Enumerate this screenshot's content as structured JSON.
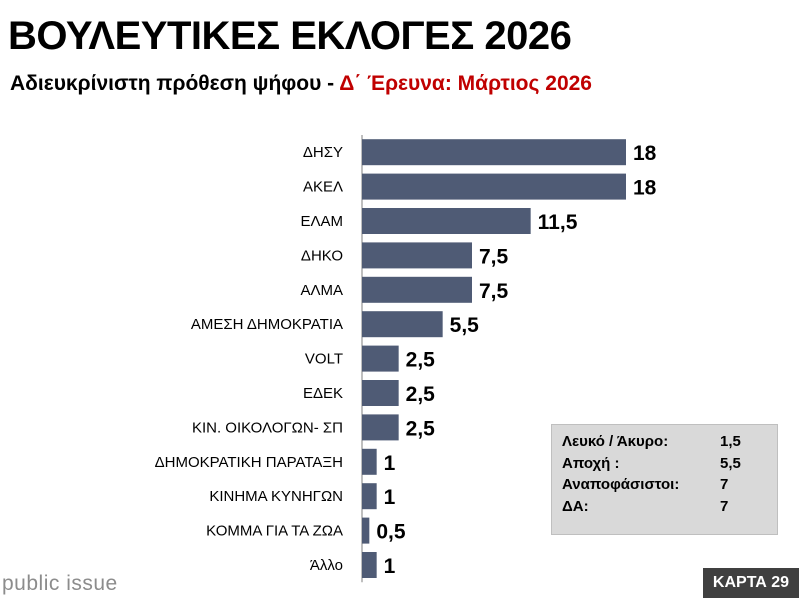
{
  "header": {
    "title": "ΒΟΥΛΕΥΤΙΚΕΣ ΕΚΛΟΓΕΣ 2026",
    "subtitle_plain": "Αδιευκρίνιστη πρόθεση ψήφου - ",
    "subtitle_accent": "Δ΄ Έρευνα:  Μάρτιος 2026"
  },
  "colors": {
    "bar": "#4f5b75",
    "accent": "#c00000",
    "axis": "#7f7f7f"
  },
  "chart_data": {
    "type": "bar",
    "orientation": "horizontal",
    "categories": [
      "ΔΗΣΥ",
      "ΑΚΕΛ",
      "ΕΛΑΜ",
      "ΔΗΚΟ",
      "ΑΛΜΑ",
      "ΑΜΕΣΗ ΔΗΜΟΚΡΑΤΙΑ",
      "VOLT",
      "ΕΔΕΚ",
      "ΚΙΝ. ΟΙΚΟΛΟΓΩΝ- ΣΠ",
      "ΔΗΜΟΚΡΑΤΙΚΗ ΠΑΡΑΤΑΞΗ",
      "ΚΙΝΗΜΑ ΚΥΝΗΓΩΝ",
      "ΚΟΜΜΑ ΓΙΑ ΤΑ ΖΩΑ",
      "Άλλο"
    ],
    "values": [
      18,
      18,
      11.5,
      7.5,
      7.5,
      5.5,
      2.5,
      2.5,
      2.5,
      1,
      1,
      0.5,
      1
    ],
    "value_labels": [
      "18",
      "18",
      "11,5",
      "7,5",
      "7,5",
      "5,5",
      "2,5",
      "2,5",
      "2,5",
      "1",
      "1",
      "0,5",
      "1"
    ],
    "xlim": [
      0,
      18
    ],
    "grid": false,
    "legend": "none"
  },
  "info_box": {
    "rows": [
      {
        "label": "Λευκό / Άκυρο:",
        "value": "1,5"
      },
      {
        "label": "Αποχή :",
        "value": "5,5"
      },
      {
        "label": "Αναποφάσιστοι:",
        "value": "7"
      },
      {
        "label": "ΔΑ:",
        "value": "7"
      }
    ]
  },
  "footer": {
    "brand": "public issue",
    "badge": "ΚΑΡΤΑ 29"
  }
}
